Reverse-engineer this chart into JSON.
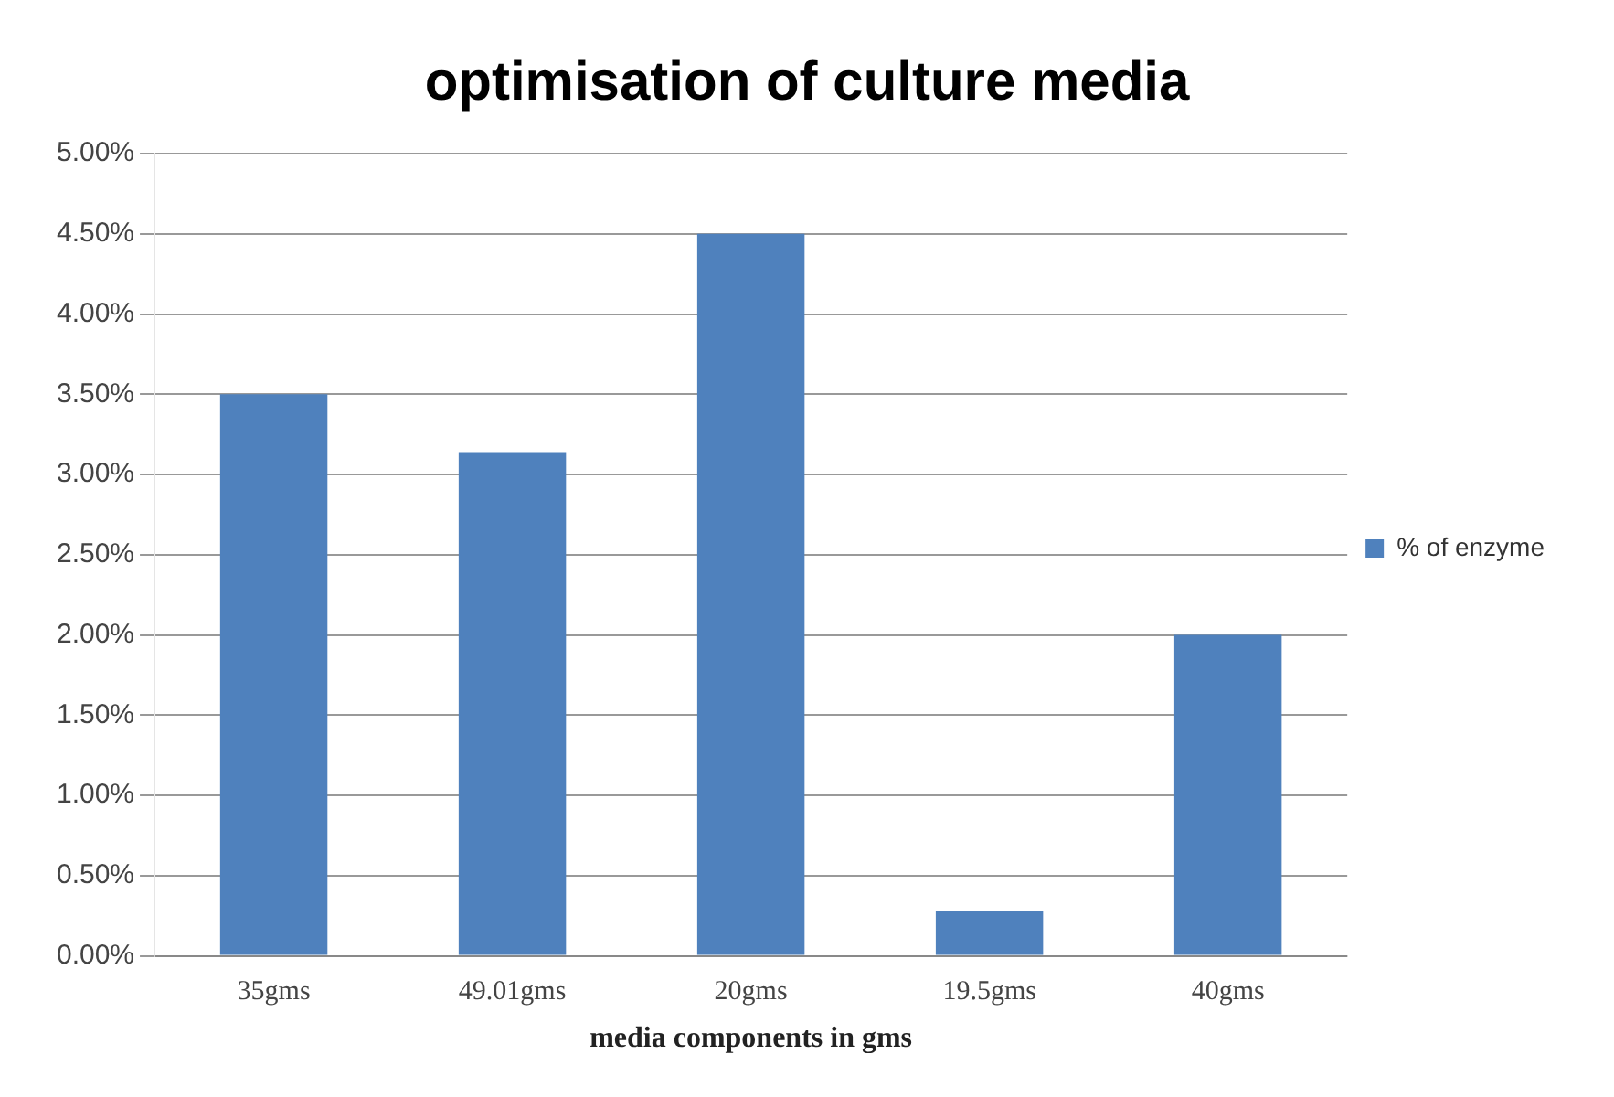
{
  "chart_data": {
    "type": "bar",
    "title": "optimisation of culture media",
    "xlabel": "media components in gms",
    "categories": [
      "35gms",
      "49.01gms",
      "20gms",
      "19.5gms",
      "40gms"
    ],
    "series": [
      {
        "name": "% of enzyme",
        "color": "#4f81bd",
        "values": [
          3.5,
          3.14,
          4.5,
          0.28,
          2.0
        ]
      }
    ],
    "ylim": [
      0,
      5
    ],
    "yticks": [
      {
        "value": 0,
        "label": "0.00%"
      },
      {
        "value": 0.5,
        "label": "0.50%"
      },
      {
        "value": 1,
        "label": "1.00%"
      },
      {
        "value": 1.5,
        "label": "1.50%"
      },
      {
        "value": 2,
        "label": "2.00%"
      },
      {
        "value": 2.5,
        "label": "2.50%"
      },
      {
        "value": 3,
        "label": "3.00%"
      },
      {
        "value": 3.5,
        "label": "3.50%"
      },
      {
        "value": 4,
        "label": "4.00%"
      },
      {
        "value": 4.5,
        "label": "4.50%"
      },
      {
        "value": 5,
        "label": "5.00%"
      }
    ],
    "grid": "y",
    "legend": "right"
  }
}
